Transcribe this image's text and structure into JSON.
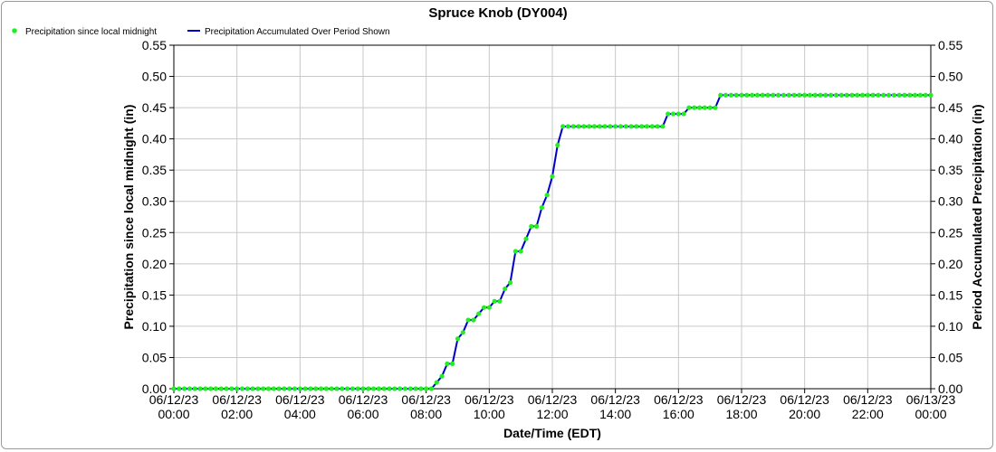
{
  "chart_data": {
    "type": "line",
    "title": "Spruce Knob (DY004)",
    "xlabel": "Date/Time (EDT)",
    "ylabel_left": "Precipitation since local midnight (in)",
    "ylabel_right": "Period Accumulated Precipitation (in)",
    "ylim": [
      0,
      0.55
    ],
    "yticks": [
      "0.00",
      "0.05",
      "0.10",
      "0.15",
      "0.20",
      "0.25",
      "0.30",
      "0.35",
      "0.40",
      "0.45",
      "0.50",
      "0.55"
    ],
    "xlim_hours": [
      0,
      24
    ],
    "xticks": [
      {
        "date": "06/12/23",
        "time": "00:00"
      },
      {
        "date": "06/12/23",
        "time": "02:00"
      },
      {
        "date": "06/12/23",
        "time": "04:00"
      },
      {
        "date": "06/12/23",
        "time": "06:00"
      },
      {
        "date": "06/12/23",
        "time": "08:00"
      },
      {
        "date": "06/12/23",
        "time": "10:00"
      },
      {
        "date": "06/12/23",
        "time": "12:00"
      },
      {
        "date": "06/12/23",
        "time": "14:00"
      },
      {
        "date": "06/12/23",
        "time": "16:00"
      },
      {
        "date": "06/12/23",
        "time": "18:00"
      },
      {
        "date": "06/12/23",
        "time": "20:00"
      },
      {
        "date": "06/12/23",
        "time": "22:00"
      },
      {
        "date": "06/13/23",
        "time": "00:00"
      }
    ],
    "grid": true,
    "legend_position": "top-left",
    "sample_interval_minutes": 10,
    "series": [
      {
        "name": "Precipitation since local midnight",
        "style": "points",
        "color": "#22ee22"
      },
      {
        "name": "Precipitation Accumulated Over Period Shown",
        "style": "line",
        "color": "#0000cc"
      }
    ],
    "values": [
      0,
      0,
      0,
      0,
      0,
      0,
      0,
      0,
      0,
      0,
      0,
      0,
      0,
      0,
      0,
      0,
      0,
      0,
      0,
      0,
      0,
      0,
      0,
      0,
      0,
      0,
      0,
      0,
      0,
      0,
      0,
      0,
      0,
      0,
      0,
      0,
      0,
      0,
      0,
      0,
      0,
      0,
      0,
      0,
      0,
      0,
      0,
      0,
      0,
      0,
      0.01,
      0.02,
      0.04,
      0.04,
      0.08,
      0.09,
      0.11,
      0.11,
      0.12,
      0.13,
      0.13,
      0.14,
      0.14,
      0.16,
      0.17,
      0.22,
      0.22,
      0.24,
      0.26,
      0.26,
      0.29,
      0.31,
      0.34,
      0.39,
      0.42,
      0.42,
      0.42,
      0.42,
      0.42,
      0.42,
      0.42,
      0.42,
      0.42,
      0.42,
      0.42,
      0.42,
      0.42,
      0.42,
      0.42,
      0.42,
      0.42,
      0.42,
      0.42,
      0.42,
      0.44,
      0.44,
      0.44,
      0.44,
      0.45,
      0.45,
      0.45,
      0.45,
      0.45,
      0.45,
      0.47,
      0.47,
      0.47,
      0.47,
      0.47,
      0.47,
      0.47,
      0.47,
      0.47,
      0.47,
      0.47,
      0.47,
      0.47,
      0.47,
      0.47,
      0.47,
      0.47,
      0.47,
      0.47,
      0.47,
      0.47,
      0.47,
      0.47,
      0.47,
      0.47,
      0.47,
      0.47,
      0.47,
      0.47,
      0.47,
      0.47,
      0.47,
      0.47,
      0.47,
      0.47,
      0.47,
      0.47,
      0.47,
      0.47,
      0.47,
      0.47
    ]
  }
}
